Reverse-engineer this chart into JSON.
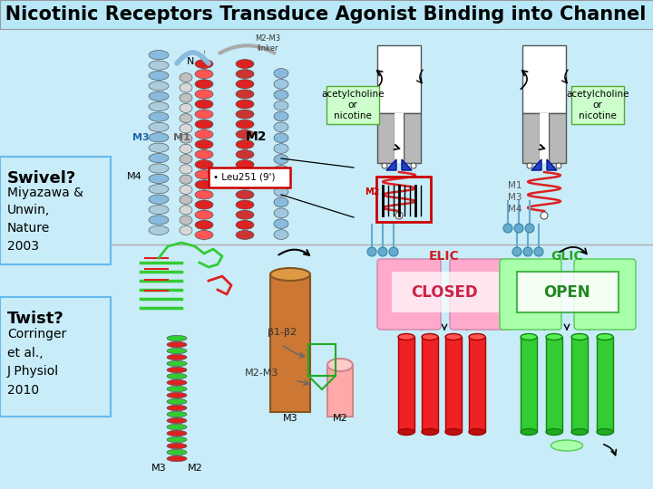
{
  "title": "How do Nicotinic Receptors Transduce Agonist Binding into Channel Gating?",
  "title_color": "#000000",
  "title_bg": "#b8e8f8",
  "bg_color": "#c8ecf8",
  "swivel_label": "Swivel?",
  "swivel_ref": "Miyazawa &\nUnwin,\nNature\n2003",
  "twist_label": "Twist?",
  "twist_ref": "Corringer\net al.,\nJ Physiol\n2010",
  "ach_label": "acetylcholine\nor\nnicotine",
  "ach_label2": "acetylcholine\nor\nnicotine",
  "elic_label": "ELIC",
  "glic_label": "GLIC",
  "closed_label": "CLOSED",
  "open_label": "OPEN",
  "label_fontsize": 13,
  "ref_fontsize": 10,
  "title_fontsize": 15
}
